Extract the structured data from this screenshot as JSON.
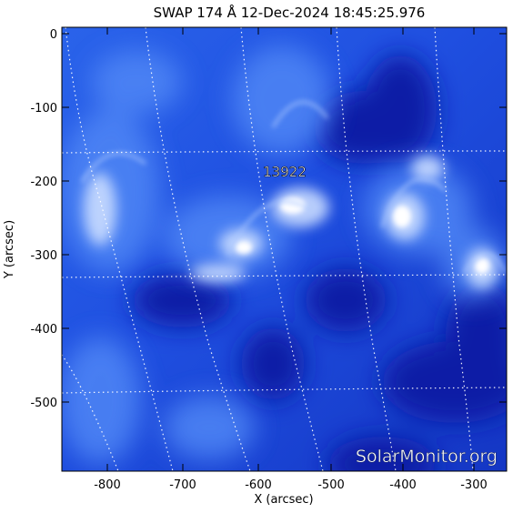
{
  "title": "SWAP 174 Å 12-Dec-2024 18:45:25.976",
  "xlabel": "X (arcsec)",
  "ylabel": "Y (arcsec)",
  "x_ticks": [
    "-800",
    "-700",
    "-600",
    "-500",
    "-400",
    "-300"
  ],
  "y_ticks": [
    "0",
    "-100",
    "-200",
    "-300",
    "-400",
    "-500"
  ],
  "region_label": "13922",
  "watermark": "SolarMonitor.org",
  "colors": {
    "image_dark": "#0a1a9c",
    "image_mid": "#2f6cf2",
    "image_bright": "#ffffff",
    "grid": "#ffffff"
  }
}
